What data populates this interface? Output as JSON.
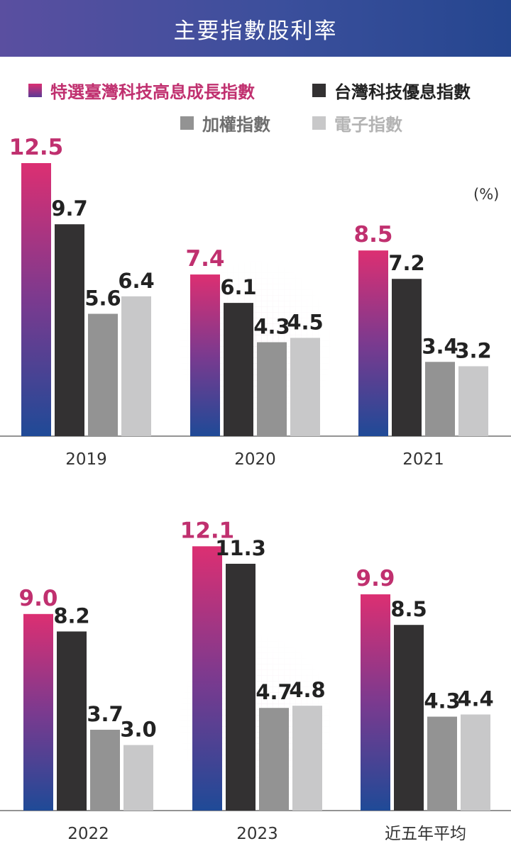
{
  "header": {
    "title": "主要指數股利率"
  },
  "unit_label": "(%)",
  "chart_data": {
    "type": "bar",
    "title": "主要指數股利率",
    "ylabel": "(%)",
    "ylim": [
      0,
      13
    ],
    "legend_position": "top",
    "series": [
      {
        "name": "特選臺灣科技高息成長指數",
        "color": "#d7327a",
        "values": [
          12.5,
          7.4,
          8.5,
          9.0,
          12.1,
          9.9
        ]
      },
      {
        "name": "台灣科技優息指數",
        "color": "#333132",
        "values": [
          9.7,
          6.1,
          7.2,
          8.2,
          11.3,
          8.5
        ]
      },
      {
        "name": "加權指數",
        "color": "#939393",
        "values": [
          5.6,
          4.3,
          3.4,
          3.7,
          4.7,
          4.3
        ]
      },
      {
        "name": "電子指數",
        "color": "#c8c8c9",
        "values": [
          6.4,
          4.5,
          3.2,
          3.0,
          4.8,
          4.4
        ]
      }
    ],
    "categories": [
      "2019",
      "2020",
      "2021",
      "2022",
      "2023",
      "近五年平均"
    ],
    "value_labels": [
      [
        "12.5",
        "9.7",
        "5.6",
        "6.4"
      ],
      [
        "7.4",
        "6.1",
        "4.3",
        "4.5"
      ],
      [
        "8.5",
        "7.2",
        "3.4",
        "3.2"
      ],
      [
        "9.0",
        "8.2",
        "3.7",
        "3.0"
      ],
      [
        "12.1",
        "11.3",
        "4.7",
        "4.8"
      ],
      [
        "9.9",
        "8.5",
        "4.3",
        "4.4"
      ]
    ],
    "gradient_colors": {
      "top": "#dc2f72",
      "mid": "#7b3a8f",
      "bottom": "#1f4a97"
    },
    "label_colors": [
      "#c0306f",
      "#222222",
      "#222222",
      "#222222"
    ]
  }
}
